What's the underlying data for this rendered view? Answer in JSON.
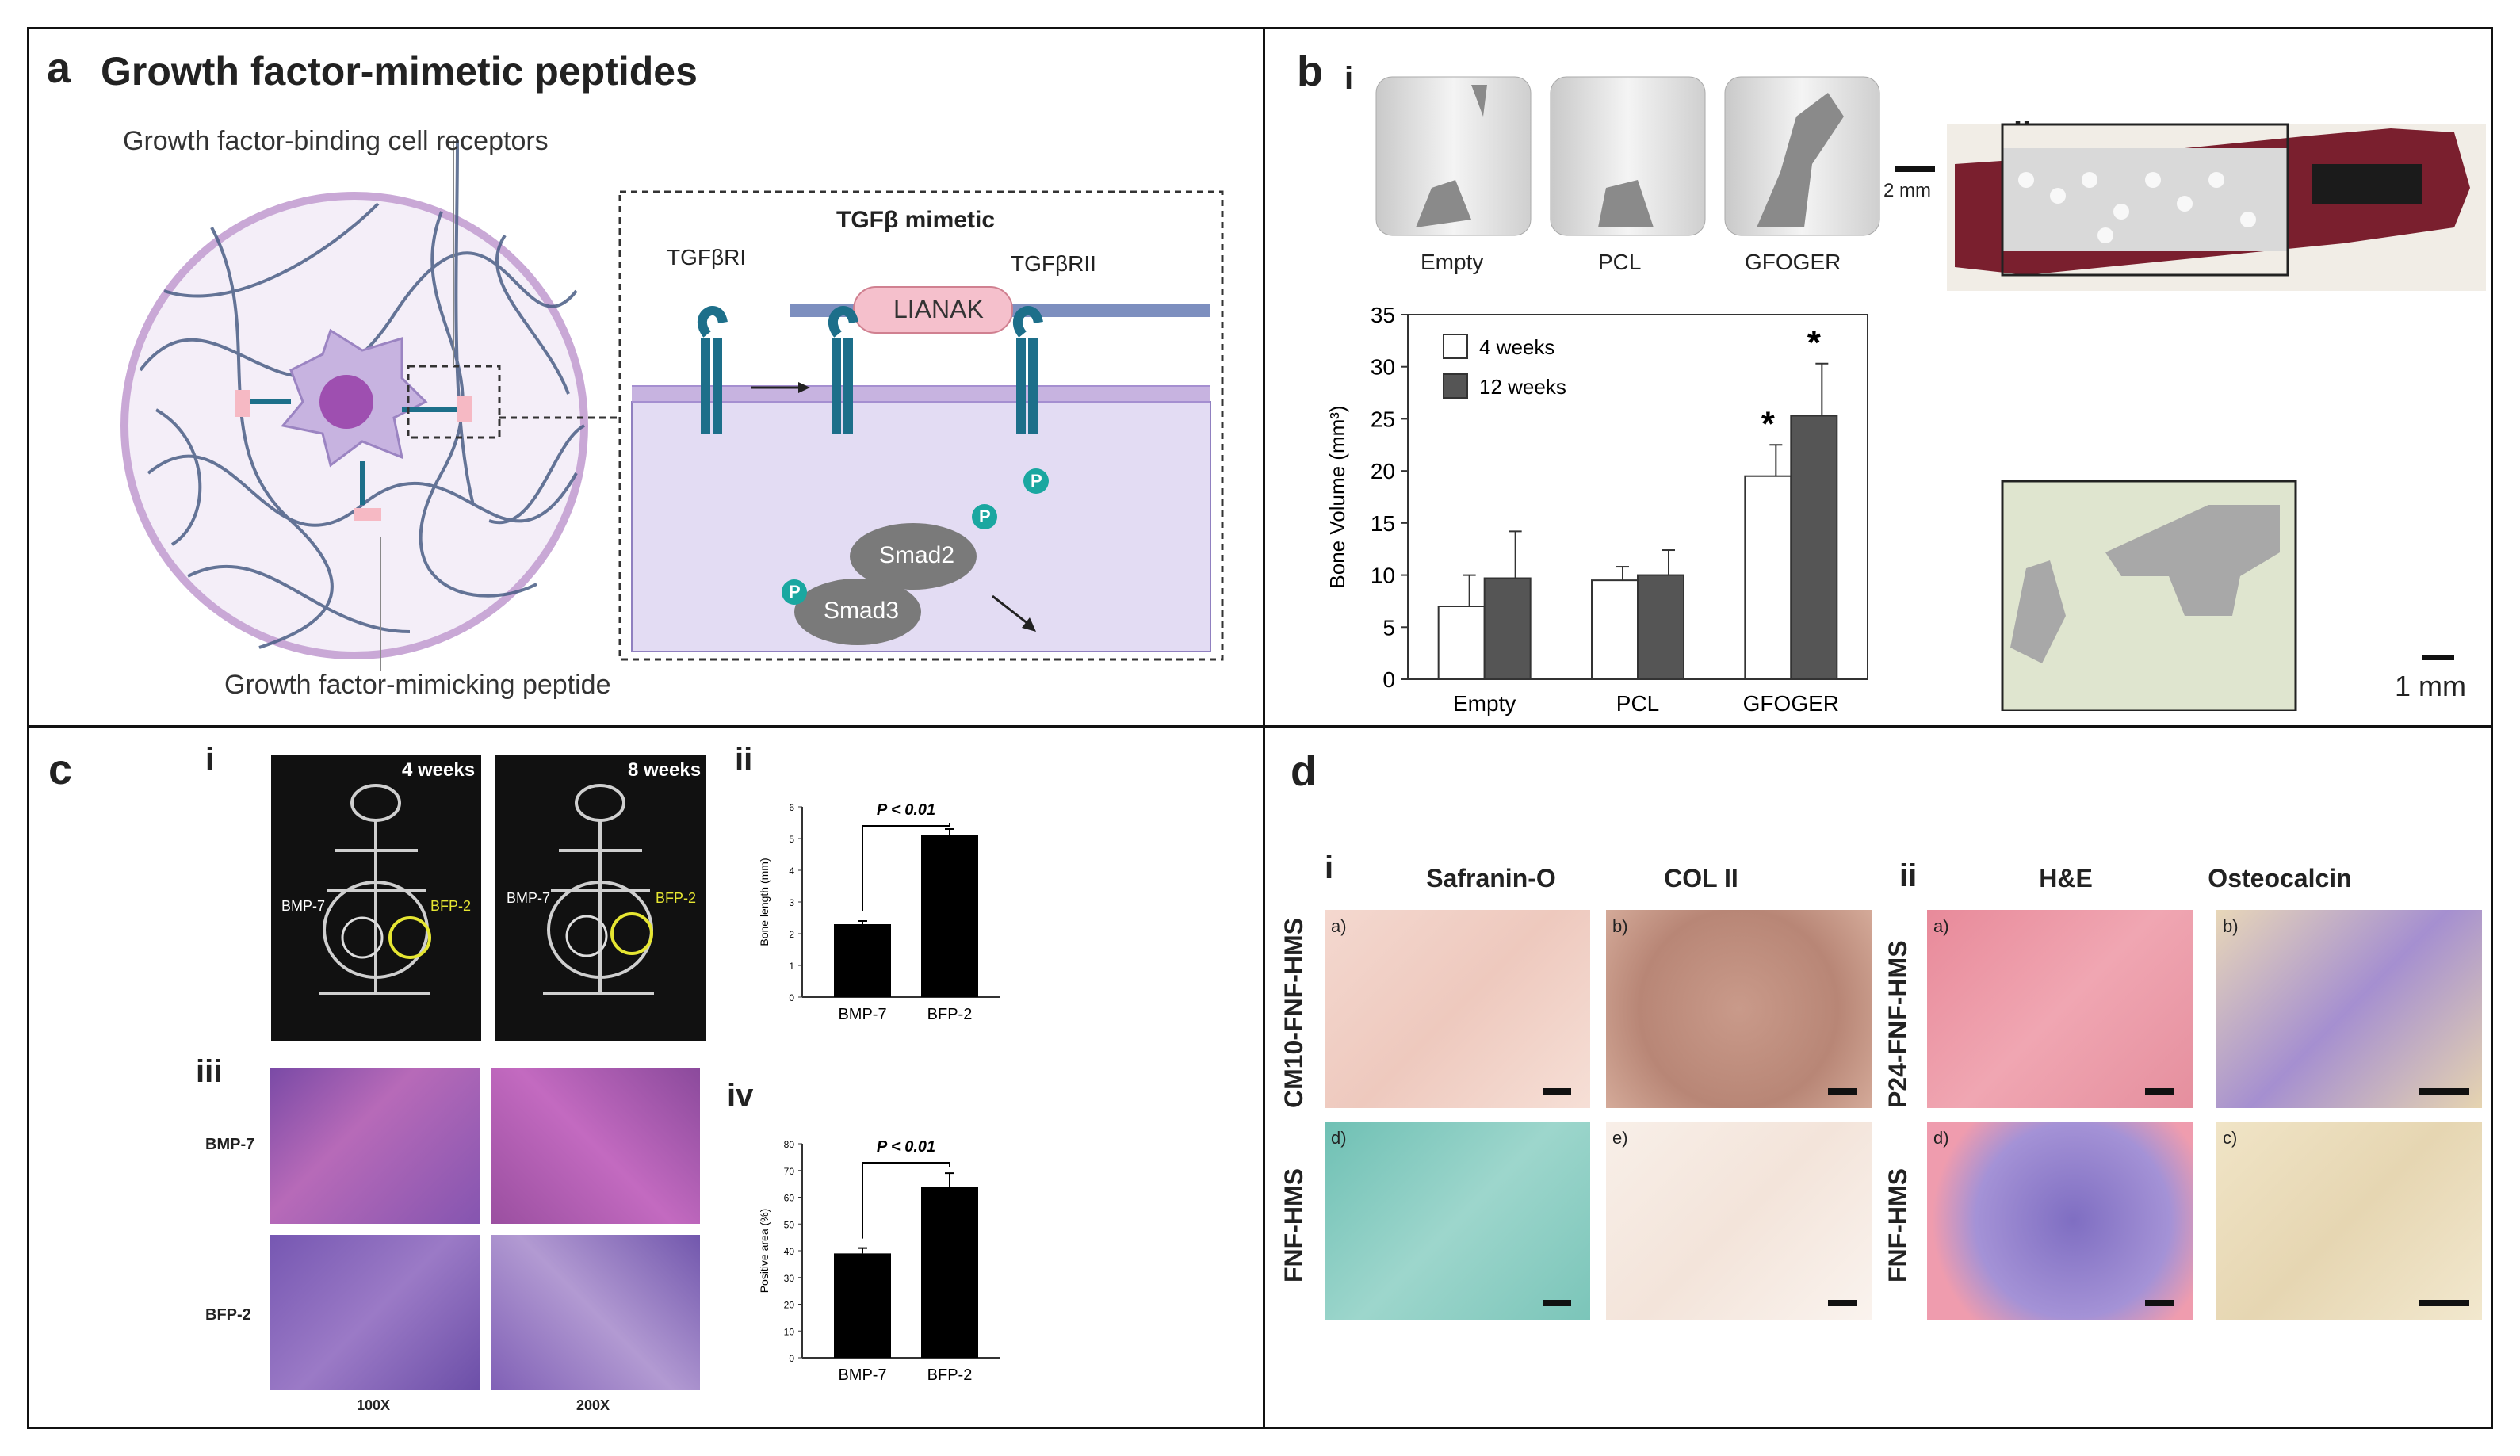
{
  "panel_a": {
    "label": "a",
    "title": "Growth factor-mimetic peptides",
    "receptor_label": "Growth factor-binding cell receptors",
    "peptide_label": "Growth factor-mimicking peptide",
    "inset_title": "TGFβ mimetic",
    "receptor1": "TGFβRI",
    "receptor2": "TGFβRII",
    "ligand": "LIANAK",
    "smad2": "Smad2",
    "smad3": "Smad3",
    "phospho": "P"
  },
  "panel_b": {
    "label": "b",
    "sub_i": "i",
    "sub_ii": "ii",
    "ct_labels": [
      "Empty",
      "PCL",
      "GFOGER"
    ],
    "ct_scale": "2 mm",
    "histo_scale": "1 mm",
    "colors": {
      "bar_4w": "#ffffff",
      "bar_12w": "#555555",
      "tissue": "#7a1f2e",
      "bone": "#d9d9d9"
    }
  },
  "panel_c": {
    "label": "c",
    "sub_i": "i",
    "sub_ii": "ii",
    "sub_iii": "iii",
    "sub_iv": "iv",
    "xray_times": [
      "4 weeks",
      "8 weeks"
    ],
    "xray_marks": [
      "BMP-7",
      "BFP-2"
    ],
    "histo_rows": [
      "BMP-7",
      "BFP-2"
    ],
    "histo_cols": [
      "100X",
      "200X"
    ]
  },
  "panel_d": {
    "label": "d",
    "sub_i": "i",
    "sub_ii": "ii",
    "cols_i": [
      "Safranin-O",
      "COL II"
    ],
    "cols_ii": [
      "H&E",
      "Osteocalcin"
    ],
    "rows_i": [
      "CM10-FNF-HMS",
      "FNF-HMS"
    ],
    "rows_ii": [
      "P24-FNF-HMS",
      "FNF-HMS"
    ],
    "tile_letters": [
      "a)",
      "b)",
      "d)",
      "e)",
      "a)",
      "b)",
      "d)",
      "c)"
    ]
  },
  "chart_data": [
    {
      "type": "bar",
      "categories": [
        "Empty",
        "PCL",
        "GFOGER"
      ],
      "series": [
        {
          "name": "4 weeks",
          "values": [
            7.0,
            9.5,
            19.5
          ],
          "errors": [
            3.0,
            1.3,
            3.0
          ]
        },
        {
          "name": "12 weeks",
          "values": [
            9.7,
            10.0,
            25.3
          ],
          "errors": [
            4.5,
            2.4,
            5.0
          ]
        }
      ],
      "xlabel": "",
      "ylabel": "Bone Volume (mm³)",
      "ylim": [
        0,
        35
      ],
      "yticks": [
        "0",
        "5",
        "10",
        "15",
        "20",
        "25",
        "30",
        "35"
      ],
      "annotations": [
        "*",
        "*"
      ],
      "legend": "top-left"
    },
    {
      "type": "bar",
      "categories": [
        "BMP-7",
        "BFP-2"
      ],
      "values": [
        2.3,
        5.1
      ],
      "errors": [
        0.1,
        0.2
      ],
      "ylabel": "Bone length (mm)",
      "ylim": [
        0,
        6
      ],
      "yticks": [
        "0",
        "1",
        "2",
        "3",
        "4",
        "5",
        "6"
      ],
      "annotation": "P < 0.01"
    },
    {
      "type": "bar",
      "categories": [
        "BMP-7",
        "BFP-2"
      ],
      "values": [
        39,
        64
      ],
      "errors": [
        2,
        5
      ],
      "ylabel": "Positive area (%)",
      "ylim": [
        0,
        80
      ],
      "yticks": [
        "0",
        "10",
        "20",
        "30",
        "40",
        "50",
        "60",
        "70",
        "80"
      ],
      "annotation": "P < 0.01"
    }
  ]
}
